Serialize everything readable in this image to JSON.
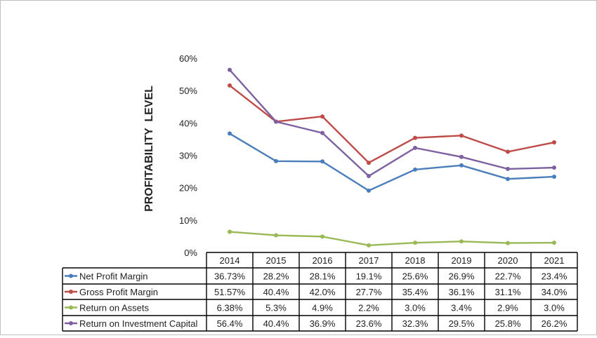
{
  "chart_data": {
    "type": "line",
    "ylabel": "PROFITABILITY  LEVEL",
    "xlabel": "",
    "ylim": [
      0,
      60
    ],
    "yticks": [
      "0%",
      "10%",
      "20%",
      "30%",
      "40%",
      "50%",
      "60%"
    ],
    "grid": false,
    "legend": "data-table",
    "categories": [
      "2014",
      "2015",
      "2016",
      "2017",
      "2018",
      "2019",
      "2020",
      "2021"
    ],
    "series": [
      {
        "name": "Net Profit Margin",
        "color": "#4a7ebb",
        "values": [
          36.73,
          28.2,
          28.1,
          19.1,
          25.6,
          26.9,
          22.7,
          23.4
        ],
        "labels": [
          "36.73%",
          "28.2%",
          "28.1%",
          "19.1%",
          "25.6%",
          "26.9%",
          "22.7%",
          "23.4%"
        ]
      },
      {
        "name": "Gross Profit Margin",
        "color": "#be4b48",
        "values": [
          51.57,
          40.4,
          42.0,
          27.7,
          35.4,
          36.1,
          31.1,
          34.0
        ],
        "labels": [
          "51.57%",
          "40.4%",
          "42.0%",
          "27.7%",
          "35.4%",
          "36.1%",
          "31.1%",
          "34.0%"
        ]
      },
      {
        "name": "Return on Assets",
        "color": "#98b954",
        "values": [
          6.38,
          5.3,
          4.9,
          2.2,
          3.0,
          3.4,
          2.9,
          3.0
        ],
        "labels": [
          "6.38%",
          "5.3%",
          "4.9%",
          "2.2%",
          "3.0%",
          "3.4%",
          "2.9%",
          "3.0%"
        ]
      },
      {
        "name": "Return on Investment Capital",
        "color": "#7d60a0",
        "values": [
          56.4,
          40.4,
          36.9,
          23.6,
          32.3,
          29.5,
          25.8,
          26.2
        ],
        "labels": [
          "56.4%",
          "40.4%",
          "36.9%",
          "23.6%",
          "32.3%",
          "29.5%",
          "25.8%",
          "26.2%"
        ]
      }
    ]
  }
}
